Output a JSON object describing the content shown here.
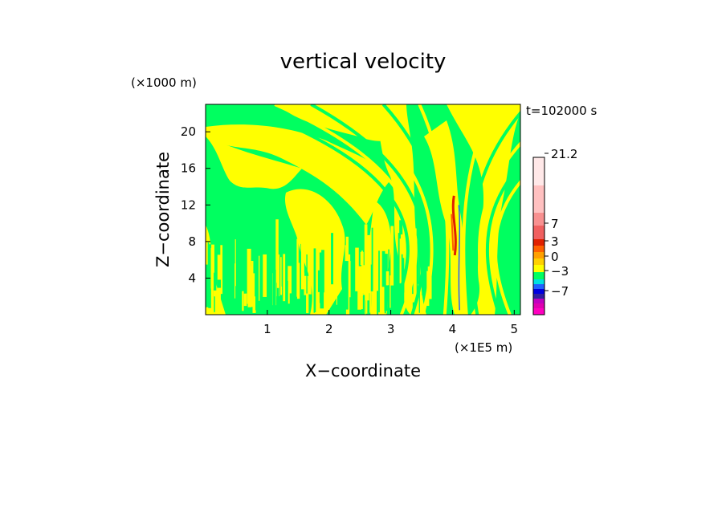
{
  "chart_data": {
    "type": "heatmap",
    "title": "vertical velocity",
    "xlabel": "X−coordinate",
    "ylabel": "Z−coordinate",
    "x_unit": "(×1E5 m)",
    "y_unit": "(×1000 m)",
    "time_label": "t=102000 s",
    "x_ticks": [
      1,
      2,
      3,
      4,
      5
    ],
    "y_ticks": [
      4,
      8,
      12,
      16,
      20
    ],
    "xlim": [
      0,
      5.1
    ],
    "ylim": [
      0,
      23
    ],
    "colorbar": {
      "tick_labels": [
        "21.2",
        "7",
        "3",
        "0",
        "−3",
        "−7"
      ],
      "tick_values": [
        21.2,
        7,
        3,
        0,
        -3,
        -7
      ],
      "levels": [
        {
          "color": "#ff00c0"
        },
        {
          "color": "#e000b0"
        },
        {
          "color": "#c000c0"
        },
        {
          "color": "#3020a0"
        },
        {
          "color": "#0000e0"
        },
        {
          "color": "#2060ff"
        },
        {
          "color": "#00e0e0"
        },
        {
          "color": "#00ff60"
        },
        {
          "color": "#ffff00"
        },
        {
          "color": "#ffd000"
        },
        {
          "color": "#ffa000"
        },
        {
          "color": "#ff6000"
        },
        {
          "color": "#e02000"
        },
        {
          "color": "#f06060"
        },
        {
          "color": "#f89090"
        },
        {
          "color": "#ffc0c0"
        },
        {
          "color": "#ffe8e8"
        }
      ]
    },
    "field_colors": {
      "background": "#00ff60",
      "updraft": "#ffff00"
    }
  }
}
